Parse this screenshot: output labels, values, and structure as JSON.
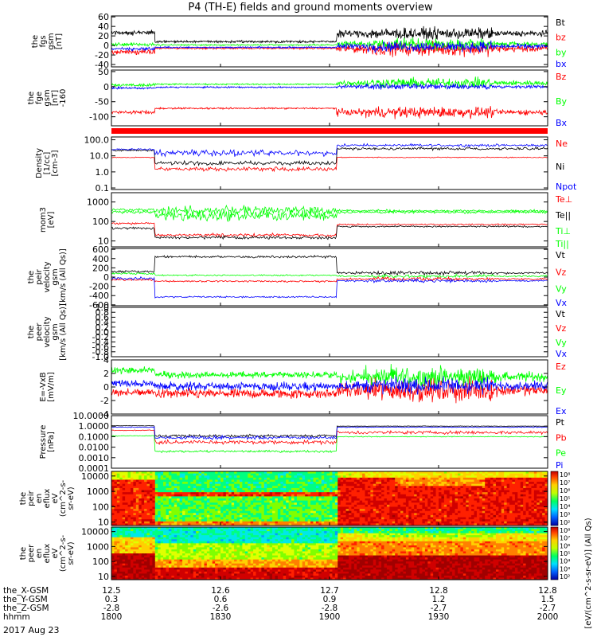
{
  "title": "P4 (TH-E) fields and ground moments overview",
  "date_label": "2017 Aug 23",
  "colors": {
    "black": "#000000",
    "red": "#ff0000",
    "green": "#00ff00",
    "blue": "#0000ff",
    "ink": "#000000"
  },
  "chart_data": [
    {
      "type": "line",
      "ylabel": [
        "the",
        "fgs",
        "gsm",
        "[nT]"
      ],
      "yticks": [
        "60",
        "40",
        "20",
        "0",
        "-20",
        "-40"
      ],
      "ylim": [
        -45,
        62
      ],
      "series": [
        {
          "name": "Bt",
          "color": "black",
          "profile": "fgs_bt"
        },
        {
          "name": "bz",
          "color": "red",
          "profile": "fgs_bz"
        },
        {
          "name": "by",
          "color": "green",
          "profile": "fgs_by"
        },
        {
          "name": "bx",
          "color": "blue",
          "profile": "fgs_bx"
        }
      ]
    },
    {
      "type": "line",
      "ylabel": [
        "the",
        "fge",
        "gsm",
        "[nT]",
        "-160"
      ],
      "yticks": [
        "50",
        "0",
        "-50",
        "-100"
      ],
      "ylim": [
        -130,
        55
      ],
      "series": [
        {
          "name": "Bz",
          "color": "red",
          "profile": "fge_bz"
        },
        {
          "name": "By",
          "color": "green",
          "profile": "fge_by"
        },
        {
          "name": "Bx",
          "color": "blue",
          "profile": "fge_bx"
        }
      ]
    },
    {
      "type": "line",
      "ylabel": [
        "Density",
        "[1/cc]",
        "[cm-3]"
      ],
      "yticks": [
        "100.0",
        "10.0",
        "1.0",
        "0.1"
      ],
      "ylim": [
        0.08,
        150
      ],
      "scale": "log",
      "series": [
        {
          "name": "Ne",
          "color": "red",
          "profile": "den_ne"
        },
        {
          "name": "Ni",
          "color": "black",
          "profile": "den_ni"
        },
        {
          "name": "Npot",
          "color": "blue",
          "profile": "den_npot"
        }
      ]
    },
    {
      "type": "line",
      "ylabel": [
        "mom3",
        "[eV]"
      ],
      "yticks": [
        "1000",
        "100",
        "10"
      ],
      "ylim": [
        5,
        3000
      ],
      "scale": "log",
      "series": [
        {
          "name": "Te⊥",
          "color": "red",
          "profile": "t_teperp"
        },
        {
          "name": "Te||",
          "color": "black",
          "profile": "t_tepar"
        },
        {
          "name": "Ti⊥",
          "color": "green",
          "profile": "t_tiperp"
        },
        {
          "name": "Ti||",
          "color": "green",
          "profile": "t_tipar"
        }
      ]
    },
    {
      "type": "line",
      "ylabel": [
        "the",
        "peir",
        "velocity",
        "gsm",
        "[km/s (All Qs)]"
      ],
      "yticks": [
        "600",
        "400",
        "200",
        "0",
        "-200",
        "-400",
        "-600"
      ],
      "ylim": [
        -620,
        620
      ],
      "series": [
        {
          "name": "Vt",
          "color": "black",
          "profile": "v_t"
        },
        {
          "name": "Vz",
          "color": "red",
          "profile": "v_z"
        },
        {
          "name": "Vy",
          "color": "green",
          "profile": "v_y"
        },
        {
          "name": "Vx",
          "color": "blue",
          "profile": "v_x"
        }
      ]
    },
    {
      "type": "line",
      "ylabel": [
        "the",
        "peer",
        "velocity",
        "gsm",
        "[km/s (All Qs)]"
      ],
      "yticks": [
        "1.0",
        "0.8",
        "0.6",
        "0.4",
        "0.2",
        "0.0",
        "-0.2",
        "-0.4",
        "-0.6",
        "-0.8",
        "-1.0"
      ],
      "ylim": [
        -1.0,
        1.0
      ],
      "series": [
        {
          "name": "Vt",
          "color": "black",
          "profile": "none"
        },
        {
          "name": "Vz",
          "color": "red",
          "profile": "none"
        },
        {
          "name": "Vy",
          "color": "green",
          "profile": "none"
        },
        {
          "name": "Vx",
          "color": "blue",
          "profile": "none"
        }
      ]
    },
    {
      "type": "line",
      "ylabel": [
        "E=-VxB",
        "[mV/m]"
      ],
      "yticks": [
        "4",
        "2",
        "0",
        "-2",
        "-4"
      ],
      "ylim": [
        -4,
        4
      ],
      "series": [
        {
          "name": "Ez",
          "color": "red",
          "profile": "e_z"
        },
        {
          "name": "Ey",
          "color": "green",
          "profile": "e_y"
        },
        {
          "name": "Ex",
          "color": "blue",
          "profile": "e_x"
        }
      ]
    },
    {
      "type": "line",
      "ylabel": [
        "Pressure",
        "[nPa]"
      ],
      "yticks": [
        "10.0000",
        "1.0000",
        "0.1000",
        "0.0100",
        "0.0010",
        "0.0001"
      ],
      "ylim": [
        0.0001,
        10
      ],
      "scale": "log",
      "series": [
        {
          "name": "Pt",
          "color": "black",
          "profile": "p_t"
        },
        {
          "name": "Pb",
          "color": "red",
          "profile": "p_b"
        },
        {
          "name": "Pe",
          "color": "green",
          "profile": "p_e"
        },
        {
          "name": "Pi",
          "color": "blue",
          "profile": "p_i"
        }
      ]
    },
    {
      "type": "heatmap",
      "ylabel": [
        "the",
        "peir",
        "en",
        "eflux",
        "eV",
        "(cm^2-s-",
        "sr-eV)"
      ],
      "yticks": [
        "10000",
        "1000",
        "100",
        "10"
      ],
      "ylim": [
        6,
        20000
      ],
      "scale": "log",
      "profile": "spec_ion",
      "colorbar_ticks": [
        "10⁸",
        "10⁷",
        "10⁶",
        "10⁵",
        "10⁴",
        "10³",
        "10²"
      ]
    },
    {
      "type": "heatmap",
      "ylabel": [
        "the",
        "peer",
        "en",
        "eflux",
        "eV",
        "(cm^2-s-",
        "sr-eV)"
      ],
      "yticks": [
        "10000",
        "1000",
        "100",
        "10"
      ],
      "ylim": [
        6,
        20000
      ],
      "scale": "log",
      "profile": "spec_ele",
      "colorbar_ticks": [
        "10⁸",
        "10⁷",
        "10⁶",
        "10⁵",
        "10⁴",
        "10³",
        "10²"
      ]
    }
  ],
  "colorbar_label": "[eV/(cm^2-s-sr-eV)] (All Qs)",
  "xaxis": {
    "range": [
      0,
      120
    ],
    "tick_minutes": [
      0,
      30,
      60,
      90,
      120
    ],
    "rows": [
      {
        "label": "the_X-GSM",
        "values": [
          "12.5",
          "12.6",
          "12.7",
          "12.8",
          "12.8"
        ]
      },
      {
        "label": "the_Y-GSM",
        "values": [
          "0.3",
          "0.6",
          "0.9",
          "1.2",
          "1.5"
        ]
      },
      {
        "label": "the_Z-GSM",
        "values": [
          "-2.8",
          "-2.6",
          "-2.8",
          "-2.7",
          "-2.7"
        ]
      },
      {
        "label": "hhmm",
        "values": [
          "1800",
          "1830",
          "1900",
          "1930",
          "2000"
        ]
      }
    ]
  }
}
